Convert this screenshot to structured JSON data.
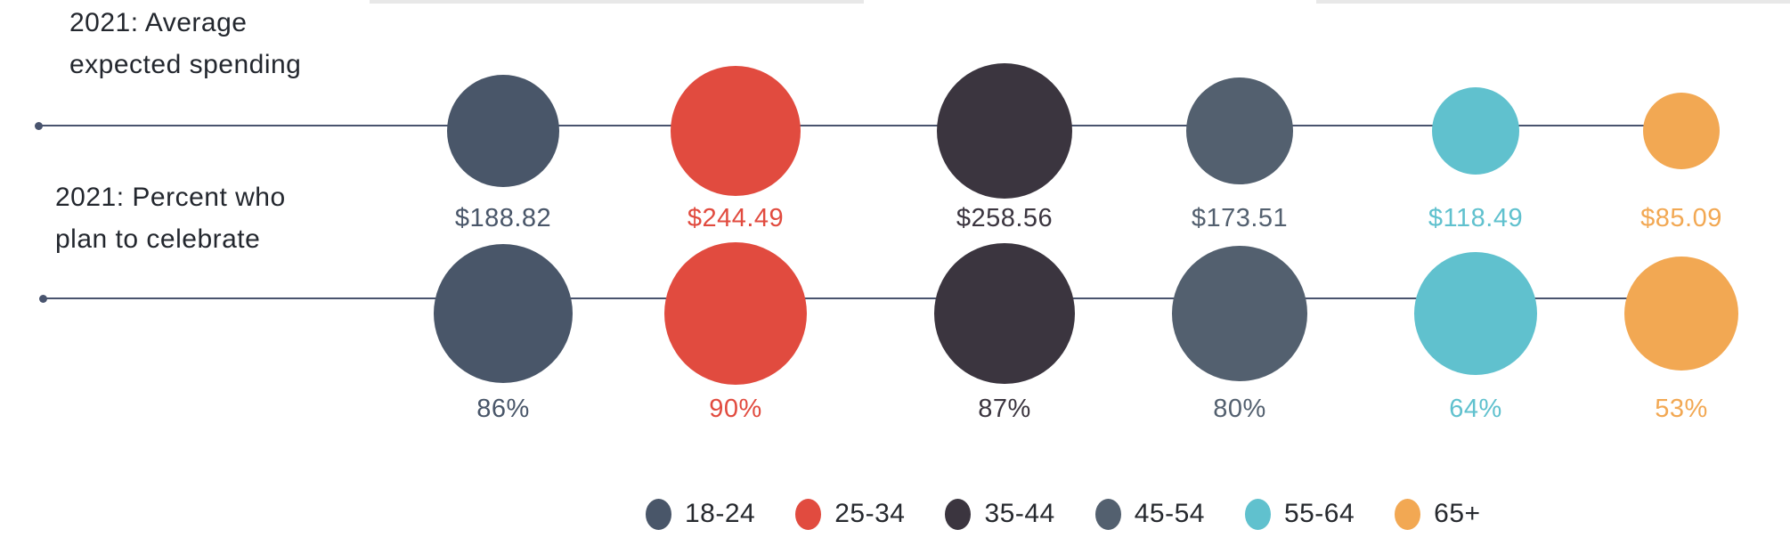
{
  "titles": {
    "row1": "2021: Average expected spending",
    "row2": "2021: Percent who plan to celebrate"
  },
  "legend": {
    "items": [
      {
        "label": "18-24",
        "color": "#495669"
      },
      {
        "label": "25-34",
        "color": "#e14b3f"
      },
      {
        "label": "35-44",
        "color": "#3b353f"
      },
      {
        "label": "45-54",
        "color": "#53606f"
      },
      {
        "label": "55-64",
        "color": "#60c1ce"
      },
      {
        "label": "65+",
        "color": "#f2a853"
      }
    ]
  },
  "chart_data": {
    "type": "bubble",
    "categories": [
      "18-24",
      "25-34",
      "35-44",
      "45-54",
      "55-64",
      "65+"
    ],
    "colors": [
      "#495669",
      "#e14b3f",
      "#3b353f",
      "#53606f",
      "#60c1ce",
      "#f2a853"
    ],
    "legend_position": "bottom",
    "rows": [
      {
        "name": "2021: Average expected spending",
        "unit": "USD",
        "values": [
          188.82,
          244.49,
          258.56,
          173.51,
          118.49,
          85.09
        ],
        "labels": [
          "$188.82",
          "$244.49",
          "$258.56",
          "$173.51",
          "$118.49",
          "$85.09"
        ]
      },
      {
        "name": "2021: Percent who plan to celebrate",
        "unit": "percent",
        "values": [
          86,
          90,
          87,
          80,
          64,
          53
        ],
        "labels": [
          "86%",
          "90%",
          "87%",
          "80%",
          "64%",
          "53%"
        ]
      }
    ]
  }
}
